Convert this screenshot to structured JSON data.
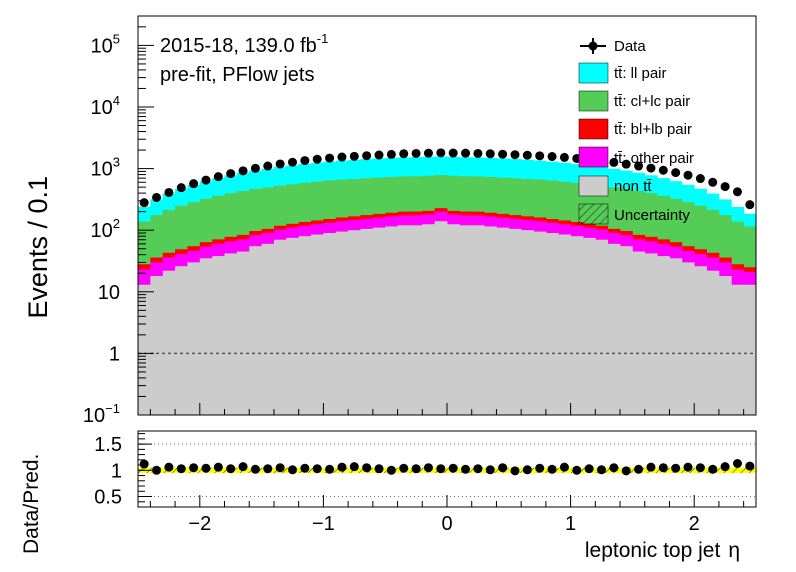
{
  "chart_data": {
    "type": "bar",
    "stacked": true,
    "y_scale": "log",
    "x_range": [
      -2.5,
      2.5
    ],
    "bin_width": 0.1,
    "ylim": [
      0.1,
      300000
    ],
    "ylabel": "Events / 0.1",
    "xlabel": "leptonic top jet",
    "xlabel_symbol": "η",
    "x_ticks": [
      "−2",
      "−1",
      "0",
      "1",
      "2"
    ],
    "x_tick_values": [
      -2,
      -1,
      0,
      1,
      2
    ],
    "y_ticks": [
      {
        "value": 0.1,
        "base": "10",
        "exp": "−1"
      },
      {
        "value": 1,
        "base": "1",
        "exp": ""
      },
      {
        "value": 10,
        "base": "10",
        "exp": ""
      },
      {
        "value": 100,
        "base": "10",
        "exp": "2"
      },
      {
        "value": 1000,
        "base": "10",
        "exp": "3"
      },
      {
        "value": 10000,
        "base": "10",
        "exp": "4"
      },
      {
        "value": 100000,
        "base": "10",
        "exp": "5"
      }
    ],
    "reference_line": 1,
    "annotations": {
      "line1": "2015-18, 139.0 fb",
      "line1_sup": "-1",
      "line2": "pre-fit, PFlow jets"
    },
    "legend": {
      "data": "Data",
      "ll": "tt̄: ll pair",
      "cl": "tt̄: cl+lc pair",
      "bl": "tt̄: bl+lb pair",
      "other": "tt̄: other pair",
      "nontt": "non tt̄",
      "unc": "Uncertainty"
    },
    "colors": {
      "ll": "#00ffff",
      "cl": "#55cc55",
      "bl": "#ff0000",
      "other": "#ff00ff",
      "nontt": "#cccccc",
      "band": "#ffff00"
    },
    "series": [
      {
        "name": "non tt̄",
        "values": [
          13,
          18,
          22,
          26,
          30,
          35,
          38,
          42,
          45,
          55,
          60,
          70,
          75,
          80,
          85,
          90,
          95,
          100,
          105,
          110,
          115,
          120,
          120,
          125,
          140,
          125,
          120,
          120,
          115,
          110,
          105,
          100,
          95,
          90,
          85,
          80,
          75,
          70,
          60,
          55,
          45,
          42,
          38,
          35,
          30,
          26,
          22,
          18,
          13,
          13
        ]
      },
      {
        "name": "tt̄: other pair",
        "values": [
          10,
          12,
          14,
          15,
          16,
          19,
          22,
          24,
          26,
          28,
          30,
          32,
          35,
          38,
          40,
          42,
          45,
          46,
          48,
          50,
          52,
          54,
          55,
          55,
          60,
          55,
          55,
          54,
          52,
          50,
          48,
          46,
          45,
          42,
          40,
          38,
          35,
          32,
          30,
          28,
          26,
          24,
          22,
          19,
          16,
          15,
          14,
          12,
          10,
          8
        ]
      },
      {
        "name": "tt̄: bl+lb pair",
        "values": [
          5,
          6,
          7,
          8,
          9,
          10,
          11,
          12,
          13,
          14,
          15,
          16,
          17,
          18,
          19,
          20,
          21,
          22,
          23,
          24,
          25,
          26,
          26,
          26,
          28,
          26,
          26,
          26,
          25,
          24,
          23,
          22,
          21,
          20,
          19,
          18,
          17,
          16,
          15,
          14,
          13,
          12,
          11,
          10,
          9,
          8,
          7,
          6,
          5,
          4
        ]
      },
      {
        "name": "tt̄: cl+lc pair",
        "values": [
          110,
          140,
          170,
          200,
          230,
          260,
          290,
          320,
          350,
          370,
          390,
          410,
          430,
          450,
          470,
          490,
          500,
          510,
          520,
          530,
          540,
          550,
          550,
          560,
          560,
          560,
          550,
          550,
          540,
          530,
          520,
          510,
          500,
          490,
          470,
          450,
          430,
          410,
          390,
          370,
          350,
          320,
          290,
          260,
          230,
          200,
          170,
          140,
          110,
          90
        ]
      },
      {
        "name": "tt̄: ll pair",
        "values": [
          100,
          140,
          180,
          220,
          260,
          300,
          340,
          380,
          420,
          460,
          500,
          540,
          570,
          600,
          630,
          660,
          690,
          710,
          730,
          750,
          760,
          770,
          780,
          790,
          790,
          790,
          780,
          770,
          760,
          750,
          730,
          710,
          690,
          660,
          630,
          600,
          570,
          540,
          500,
          460,
          420,
          380,
          340,
          300,
          260,
          220,
          180,
          140,
          100,
          70
        ]
      },
      {
        "name": "Data",
        "values": [
          280,
          340,
          410,
          490,
          570,
          650,
          740,
          830,
          920,
          1010,
          1100,
          1190,
          1270,
          1350,
          1420,
          1480,
          1540,
          1580,
          1620,
          1660,
          1700,
          1740,
          1760,
          1780,
          1800,
          1790,
          1780,
          1760,
          1740,
          1710,
          1680,
          1650,
          1610,
          1570,
          1520,
          1460,
          1400,
          1330,
          1260,
          1180,
          1100,
          1020,
          940,
          860,
          780,
          690,
          600,
          510,
          420,
          260
        ]
      },
      {
        "name": "Data/Pred.",
        "values": [
          1.12,
          1.0,
          1.06,
          1.03,
          1.05,
          1.04,
          1.06,
          1.03,
          1.07,
          1.02,
          1.03,
          1.05,
          1.01,
          1.04,
          1.03,
          1.02,
          1.06,
          1.07,
          1.05,
          1.03,
          1.0,
          1.04,
          1.03,
          1.05,
          1.03,
          1.04,
          1.02,
          1.03,
          1.01,
          1.05,
          0.99,
          1.01,
          1.04,
          1.02,
          1.06,
          1.0,
          1.03,
          1.01,
          1.05,
          0.99,
          1.02,
          1.06,
          1.05,
          1.04,
          1.06,
          1.05,
          1.02,
          1.07,
          1.13,
          1.08
        ]
      }
    ],
    "ratio": {
      "ylabel": "Data/Pred.",
      "ylim": [
        0.3,
        1.75
      ],
      "y_ticks": [
        "0.5",
        "1",
        "1.5"
      ],
      "y_tick_values": [
        0.5,
        1.0,
        1.5
      ],
      "gridlines": [
        0.5,
        1.0,
        1.5
      ],
      "band_halfwidth": [
        0.05,
        0.05,
        0.05,
        0.05,
        0.05,
        0.05,
        0.05,
        0.05,
        0.05,
        0.05,
        0.05,
        0.05,
        0.05,
        0.05,
        0.05,
        0.05,
        0.05,
        0.05,
        0.05,
        0.05,
        0.05,
        0.05,
        0.05,
        0.05,
        0.05,
        0.05,
        0.05,
        0.05,
        0.05,
        0.05,
        0.05,
        0.05,
        0.05,
        0.05,
        0.05,
        0.05,
        0.05,
        0.05,
        0.05,
        0.05,
        0.05,
        0.05,
        0.05,
        0.05,
        0.05,
        0.05,
        0.05,
        0.05,
        0.05,
        0.05
      ]
    }
  }
}
